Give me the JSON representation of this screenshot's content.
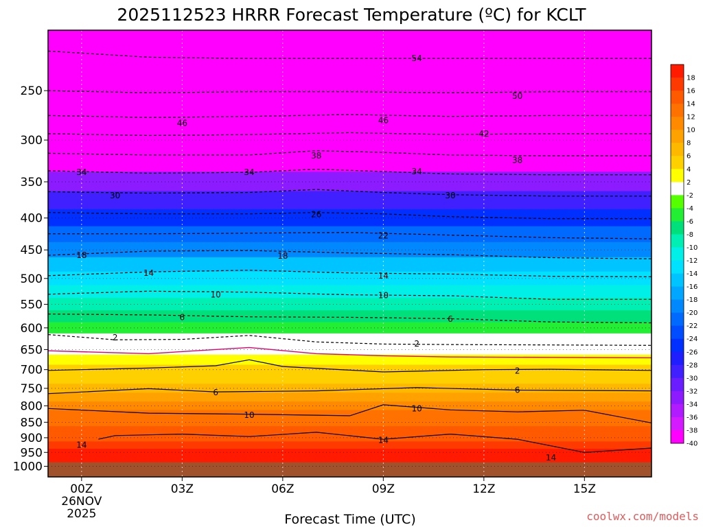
{
  "chart_data": {
    "type": "heatmap",
    "title": "2025112523 HRRR Forecast Temperature (ºC) for KCLT",
    "xlabel": "Forecast Time (UTC)",
    "ylabel": "",
    "credit": "coolwx.com/models",
    "x_tick_labels": [
      {
        "hour": 0,
        "label": "00Z",
        "sub": [
          "26NOV",
          "2025"
        ]
      },
      {
        "hour": 3,
        "label": "03Z"
      },
      {
        "hour": 6,
        "label": "06Z"
      },
      {
        "hour": 9,
        "label": "09Z"
      },
      {
        "hour": 12,
        "label": "12Z"
      },
      {
        "hour": 15,
        "label": "15Z"
      }
    ],
    "xlim": [
      -1,
      17
    ],
    "ylim": [
      1040,
      200
    ],
    "y_scale": "log-pressure",
    "y_ticks": [
      250,
      300,
      350,
      400,
      450,
      500,
      550,
      600,
      650,
      700,
      750,
      800,
      850,
      900,
      950,
      1000
    ],
    "grid": "dotted",
    "colorbar": {
      "placement": "right",
      "bins": [
        {
          "label": "18",
          "color": "#ff1a00"
        },
        {
          "label": "16",
          "color": "#ff3a00"
        },
        {
          "label": "14",
          "color": "#ff5a00"
        },
        {
          "label": "12",
          "color": "#ff7200"
        },
        {
          "label": "10",
          "color": "#ff8a00"
        },
        {
          "label": "8",
          "color": "#ffa200"
        },
        {
          "label": "6",
          "color": "#ffb800"
        },
        {
          "label": "4",
          "color": "#ffd000"
        },
        {
          "label": "2",
          "color": "#ffff00"
        },
        {
          "label": "-2",
          "color": "#ffffff"
        },
        {
          "label": "-4",
          "color": "#55ff00"
        },
        {
          "label": "-6",
          "color": "#22ee33"
        },
        {
          "label": "-8",
          "color": "#00e07a"
        },
        {
          "label": "-10",
          "color": "#00f0b4"
        },
        {
          "label": "-12",
          "color": "#00f0e8"
        },
        {
          "label": "-14",
          "color": "#00e0ff"
        },
        {
          "label": "-16",
          "color": "#00c4ff"
        },
        {
          "label": "-18",
          "color": "#00a6ff"
        },
        {
          "label": "-20",
          "color": "#0088ff"
        },
        {
          "label": "-22",
          "color": "#006aff"
        },
        {
          "label": "-24",
          "color": "#004cff"
        },
        {
          "label": "-26",
          "color": "#0030ff"
        },
        {
          "label": "-28",
          "color": "#1e1eff"
        },
        {
          "label": "-30",
          "color": "#4020ff"
        },
        {
          "label": "-32",
          "color": "#6a1eff"
        },
        {
          "label": "-34",
          "color": "#8c1cff"
        },
        {
          "label": "-36",
          "color": "#b01cff"
        },
        {
          "label": "-38",
          "color": "#d41aff"
        },
        {
          "label": "-40",
          "color": "#ff00ff"
        }
      ]
    },
    "temperature_profile": [
      {
        "p": 200,
        "t": -58
      },
      {
        "p": 225,
        "t": -55
      },
      {
        "p": 250,
        "t": -51
      },
      {
        "p": 275,
        "t": -47
      },
      {
        "p": 300,
        "t": -43
      },
      {
        "p": 325,
        "t": -38
      },
      {
        "p": 350,
        "t": -33
      },
      {
        "p": 375,
        "t": -29
      },
      {
        "p": 400,
        "t": -25
      },
      {
        "p": 425,
        "t": -21
      },
      {
        "p": 450,
        "t": -18
      },
      {
        "p": 475,
        "t": -15
      },
      {
        "p": 500,
        "t": -12
      },
      {
        "p": 525,
        "t": -10
      },
      {
        "p": 550,
        "t": -8
      },
      {
        "p": 575,
        "t": -6
      },
      {
        "p": 600,
        "t": -4
      },
      {
        "p": 625,
        "t": -2
      },
      {
        "p": 650,
        "t": 0
      },
      {
        "p": 675,
        "t": 2
      },
      {
        "p": 700,
        "t": 3
      },
      {
        "p": 725,
        "t": 4
      },
      {
        "p": 750,
        "t": 6
      },
      {
        "p": 775,
        "t": 8
      },
      {
        "p": 800,
        "t": 9
      },
      {
        "p": 825,
        "t": 10.5
      },
      {
        "p": 850,
        "t": 11.5
      },
      {
        "p": 875,
        "t": 13
      },
      {
        "p": 900,
        "t": 14
      },
      {
        "p": 925,
        "t": 15
      },
      {
        "p": 950,
        "t": 16
      },
      {
        "p": 975,
        "t": 17
      },
      {
        "p": 985,
        "t": 17.5
      }
    ],
    "ground_color": "#a0522d",
    "ground_pressure": 985,
    "freezing_line_color": "#e0006e",
    "contours": [
      {
        "value": -54,
        "label": "54",
        "style": "dashed",
        "points": [
          [
            -1,
            216
          ],
          [
            2,
            221
          ],
          [
            5,
            222
          ],
          [
            8,
            222
          ],
          [
            11,
            222
          ],
          [
            14,
            222
          ],
          [
            17,
            222
          ]
        ]
      },
      {
        "value": -50,
        "label": "50",
        "style": "dashed",
        "points": [
          [
            -1,
            250
          ],
          [
            2,
            252
          ],
          [
            5,
            251
          ],
          [
            8,
            251
          ],
          [
            11,
            252
          ],
          [
            14,
            251
          ],
          [
            17,
            251
          ]
        ]
      },
      {
        "value": -46,
        "label": "46",
        "style": "dashed",
        "points": [
          [
            -1,
            274
          ],
          [
            2,
            276
          ],
          [
            5,
            275
          ],
          [
            8,
            273
          ],
          [
            11,
            275
          ],
          [
            14,
            274
          ],
          [
            17,
            274
          ]
        ]
      },
      {
        "value": -42,
        "label": "42",
        "style": "dashed",
        "points": [
          [
            -1,
            293
          ],
          [
            2,
            295
          ],
          [
            5,
            294
          ],
          [
            8,
            292
          ],
          [
            11,
            294
          ],
          [
            14,
            293
          ],
          [
            17,
            293
          ]
        ]
      },
      {
        "value": -38,
        "label": "38",
        "style": "dashed",
        "points": [
          [
            -1,
            315
          ],
          [
            2,
            317
          ],
          [
            5,
            317
          ],
          [
            7,
            312
          ],
          [
            9,
            314
          ],
          [
            11,
            317
          ],
          [
            14,
            318
          ],
          [
            17,
            318
          ]
        ]
      },
      {
        "value": -34,
        "label": "34",
        "style": "dashed",
        "points": [
          [
            -1,
            336
          ],
          [
            2,
            339
          ],
          [
            5,
            338
          ],
          [
            7,
            334
          ],
          [
            9,
            337
          ],
          [
            11,
            340
          ],
          [
            14,
            341
          ],
          [
            17,
            341
          ]
        ]
      },
      {
        "value": -30,
        "label": "30",
        "style": "dashed",
        "points": [
          [
            -1,
            363
          ],
          [
            2,
            365
          ],
          [
            5,
            364
          ],
          [
            7,
            360
          ],
          [
            9,
            364
          ],
          [
            11,
            367
          ],
          [
            14,
            369
          ],
          [
            17,
            369
          ]
        ]
      },
      {
        "value": -26,
        "label": "26",
        "style": "dashed",
        "points": [
          [
            -1,
            392
          ],
          [
            2,
            394
          ],
          [
            5,
            394
          ],
          [
            7,
            392
          ],
          [
            9,
            394
          ],
          [
            11,
            398
          ],
          [
            14,
            401
          ],
          [
            17,
            401
          ]
        ]
      },
      {
        "value": -22,
        "label": "22",
        "style": "dashed",
        "points": [
          [
            -1,
            424
          ],
          [
            2,
            424
          ],
          [
            5,
            423
          ],
          [
            8,
            422
          ],
          [
            11,
            426
          ],
          [
            14,
            430
          ],
          [
            17,
            432
          ]
        ]
      },
      {
        "value": -18,
        "label": "18",
        "style": "dashed",
        "points": [
          [
            -1,
            459
          ],
          [
            2,
            452
          ],
          [
            5,
            451
          ],
          [
            8,
            455
          ],
          [
            11,
            458
          ],
          [
            14,
            463
          ],
          [
            17,
            465
          ]
        ]
      },
      {
        "value": -14,
        "label": "14",
        "style": "dashed",
        "points": [
          [
            -1,
            495
          ],
          [
            2,
            488
          ],
          [
            5,
            485
          ],
          [
            8,
            490
          ],
          [
            11,
            492
          ],
          [
            14,
            496
          ],
          [
            17,
            497
          ]
        ]
      },
      {
        "value": -10,
        "label": "10",
        "style": "dashed",
        "points": [
          [
            -1,
            530
          ],
          [
            2,
            524
          ],
          [
            5,
            526
          ],
          [
            8,
            531
          ],
          [
            11,
            533
          ],
          [
            14,
            540
          ],
          [
            17,
            540
          ]
        ]
      },
      {
        "value": -6,
        "label": "6",
        "style": "dashed",
        "points": [
          [
            -1,
            570
          ],
          [
            2,
            572
          ],
          [
            5,
            576
          ],
          [
            8,
            577
          ],
          [
            11,
            580
          ],
          [
            14,
            587
          ],
          [
            17,
            589
          ]
        ]
      },
      {
        "value": -2,
        "label": "2",
        "style": "dashed",
        "points": [
          [
            -1,
            615
          ],
          [
            1,
            627
          ],
          [
            3,
            626
          ],
          [
            5,
            617
          ],
          [
            7,
            632
          ],
          [
            9,
            637
          ],
          [
            11,
            638
          ],
          [
            14,
            639
          ],
          [
            17,
            640
          ]
        ]
      },
      {
        "value": 0,
        "label": "",
        "style": "freezing",
        "points": [
          [
            -1,
            653
          ],
          [
            2,
            660
          ],
          [
            5,
            645
          ],
          [
            7,
            660
          ],
          [
            9,
            665
          ],
          [
            11,
            668
          ],
          [
            14,
            669
          ],
          [
            17,
            670
          ]
        ]
      },
      {
        "value": 2,
        "label": "2",
        "style": "solid",
        "points": [
          [
            -1,
            702
          ],
          [
            2,
            696
          ],
          [
            4,
            690
          ],
          [
            5,
            675
          ],
          [
            6,
            692
          ],
          [
            9,
            706
          ],
          [
            12,
            700
          ],
          [
            14,
            699
          ],
          [
            17,
            702
          ]
        ]
      },
      {
        "value": 6,
        "label": "6",
        "style": "solid",
        "points": [
          [
            -1,
            765
          ],
          [
            2,
            751
          ],
          [
            4,
            760
          ],
          [
            7,
            757
          ],
          [
            10,
            748
          ],
          [
            13,
            755
          ],
          [
            17,
            757
          ]
        ]
      },
      {
        "value": 10,
        "label": "10",
        "style": "solid",
        "points": [
          [
            -1,
            808
          ],
          [
            2,
            822
          ],
          [
            5,
            825
          ],
          [
            8,
            830
          ],
          [
            9,
            797
          ],
          [
            11,
            812
          ],
          [
            13,
            818
          ],
          [
            15,
            813
          ],
          [
            17,
            852
          ]
        ]
      },
      {
        "value": 14,
        "label": "14",
        "style": "solid",
        "points": [
          [
            0.5,
            905
          ],
          [
            1,
            893
          ],
          [
            3,
            888
          ],
          [
            5,
            896
          ],
          [
            7,
            882
          ],
          [
            9,
            905
          ],
          [
            11,
            888
          ],
          [
            13,
            905
          ],
          [
            15,
            950
          ],
          [
            17,
            935
          ]
        ]
      }
    ],
    "contour_labels": [
      {
        "text": "54",
        "hour": 10,
        "p": 222
      },
      {
        "text": "50",
        "hour": 13,
        "p": 255
      },
      {
        "text": "46",
        "hour": 3,
        "p": 282
      },
      {
        "text": "46",
        "hour": 9,
        "p": 279
      },
      {
        "text": "42",
        "hour": 12,
        "p": 293
      },
      {
        "text": "38",
        "hour": 7,
        "p": 318
      },
      {
        "text": "38",
        "hour": 13,
        "p": 323
      },
      {
        "text": "34",
        "hour": 0,
        "p": 338
      },
      {
        "text": "34",
        "hour": 5,
        "p": 338
      },
      {
        "text": "34",
        "hour": 10,
        "p": 337
      },
      {
        "text": "30",
        "hour": 1,
        "p": 368
      },
      {
        "text": "30",
        "hour": 11,
        "p": 368
      },
      {
        "text": "26",
        "hour": 7,
        "p": 395
      },
      {
        "text": "22",
        "hour": 9,
        "p": 427
      },
      {
        "text": "18",
        "hour": 0,
        "p": 459
      },
      {
        "text": "18",
        "hour": 6,
        "p": 460
      },
      {
        "text": "14",
        "hour": 2,
        "p": 490
      },
      {
        "text": "14",
        "hour": 9,
        "p": 495
      },
      {
        "text": "10",
        "hour": 4,
        "p": 531
      },
      {
        "text": "10",
        "hour": 9,
        "p": 532
      },
      {
        "text": "6",
        "hour": 3,
        "p": 577
      },
      {
        "text": "6",
        "hour": 11,
        "p": 581
      },
      {
        "text": "2",
        "hour": 1,
        "p": 622
      },
      {
        "text": "2",
        "hour": 10,
        "p": 636
      },
      {
        "text": "2",
        "hour": 13,
        "p": 703
      },
      {
        "text": "6",
        "hour": 4,
        "p": 762
      },
      {
        "text": "6",
        "hour": 13,
        "p": 755
      },
      {
        "text": "10",
        "hour": 5,
        "p": 828
      },
      {
        "text": "10",
        "hour": 10,
        "p": 808
      },
      {
        "text": "14",
        "hour": 0,
        "p": 925
      },
      {
        "text": "14",
        "hour": 9,
        "p": 908
      },
      {
        "text": "14",
        "hour": 14,
        "p": 969
      }
    ]
  }
}
